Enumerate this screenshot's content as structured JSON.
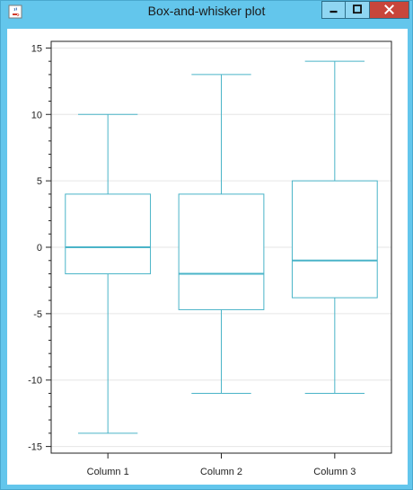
{
  "window": {
    "title": "Box-and-whisker plot",
    "icon": "java-cup-icon",
    "buttons": [
      "minimize",
      "maximize",
      "close"
    ]
  },
  "colors": {
    "titlebar": "#63c6ec",
    "close_button": "#c8463b",
    "series": "#4ab4c8",
    "gridline": "#e6e6e6"
  },
  "chart_data": {
    "type": "box",
    "title": "",
    "xlabel": "",
    "ylabel": "",
    "ylim": [
      -15.5,
      15.5
    ],
    "yticks": [
      -15,
      -10,
      -5,
      0,
      5,
      10,
      15
    ],
    "yticks_labels": [
      "-15",
      "-10",
      "-5",
      "0",
      "5",
      "10",
      "15"
    ],
    "grid": true,
    "categories": [
      "Column 1",
      "Column 2",
      "Column 3"
    ],
    "boxes": [
      {
        "category": "Column 1",
        "min": -14,
        "q1": -2,
        "median": 0,
        "q3": 4,
        "max": 10
      },
      {
        "category": "Column 2",
        "min": -11,
        "q1": -4.7,
        "median": -2,
        "q3": 4,
        "max": 13
      },
      {
        "category": "Column 3",
        "min": -11,
        "q1": -3.8,
        "median": -1,
        "q3": 5,
        "max": 14
      }
    ]
  }
}
